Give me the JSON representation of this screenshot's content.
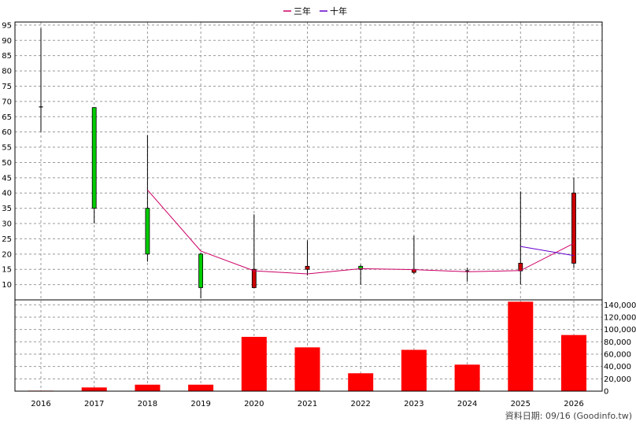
{
  "chart_data": {
    "type": "candlestick",
    "years": [
      "2016",
      "2017",
      "2018",
      "2019",
      "2020",
      "2021",
      "2022",
      "2023",
      "2024",
      "2025",
      "2026"
    ],
    "price": {
      "ylim": [
        5,
        96
      ],
      "ticks": [
        10,
        15,
        20,
        25,
        30,
        35,
        40,
        45,
        50,
        55,
        60,
        65,
        70,
        75,
        80,
        85,
        90,
        95
      ],
      "tick_labels": [
        "10",
        "15",
        "20",
        "25",
        "30",
        "35",
        "40",
        "45",
        "50",
        "55",
        "60",
        "65",
        "70",
        "75",
        "80",
        "85",
        "90",
        "95"
      ],
      "candles": [
        {
          "year": "2016",
          "open": 68.2,
          "close": 68.2,
          "high": 94,
          "low": 60,
          "color": "#000000"
        },
        {
          "year": "2017",
          "open": 35,
          "close": 68,
          "high": 68,
          "low": 30,
          "color": "#00cc00"
        },
        {
          "year": "2018",
          "open": 20,
          "close": 35,
          "high": 59,
          "low": 17.5,
          "color": "#00cc00"
        },
        {
          "year": "2019",
          "open": 9,
          "close": 20,
          "high": 20.5,
          "low": 5.5,
          "color": "#00cc00"
        },
        {
          "year": "2020",
          "open": 15,
          "close": 9,
          "high": 33,
          "low": 9,
          "color": "#cc0000"
        },
        {
          "year": "2021",
          "open": 16,
          "close": 15,
          "high": 24.5,
          "low": 13,
          "color": "#cc0000"
        },
        {
          "year": "2022",
          "open": 15,
          "close": 16,
          "high": 16.5,
          "low": 10,
          "color": "#00cc00"
        },
        {
          "year": "2023",
          "open": 15,
          "close": 14,
          "high": 26,
          "low": 13.5,
          "color": "#cc0000"
        },
        {
          "year": "2024",
          "open": 14.5,
          "close": 14.2,
          "high": 15.5,
          "low": 11,
          "color": "#000000"
        },
        {
          "year": "2025",
          "open": 17,
          "close": 14.5,
          "high": 40.5,
          "low": 10,
          "color": "#cc0000"
        },
        {
          "year": "2026",
          "open": 40,
          "close": 17,
          "high": 45,
          "low": 15.5,
          "color": "#cc0000"
        }
      ]
    },
    "series": [
      {
        "name": "三年",
        "color": "#cc0066",
        "points": [
          [
            "2018",
            41
          ],
          [
            "2019",
            21
          ],
          [
            "2020",
            14.5
          ],
          [
            "2021",
            13.5
          ],
          [
            "2022",
            15.2
          ],
          [
            "2023",
            14.9
          ],
          [
            "2024",
            14.2
          ],
          [
            "2025",
            14.6
          ],
          [
            "2026",
            23.5
          ]
        ]
      },
      {
        "name": "十年",
        "color": "#6600cc",
        "points": [
          [
            "2025",
            22.5
          ],
          [
            "2026",
            19.5
          ]
        ]
      }
    ],
    "volume": {
      "ylim": [
        0,
        148000
      ],
      "ticks": [
        0,
        20000,
        40000,
        60000,
        80000,
        100000,
        120000,
        140000
      ],
      "tick_labels": [
        "0",
        "20,000",
        "40,000",
        "60,000",
        "80,000",
        "100,000",
        "120,000",
        "140,000"
      ],
      "values": [
        800,
        6000,
        10500,
        10500,
        88000,
        71000,
        29000,
        67000,
        43000,
        145000,
        91000
      ],
      "color": "#ff0000"
    },
    "x_labels": [
      "2016",
      "2017",
      "2018",
      "2019",
      "2020",
      "2021",
      "2022",
      "2023",
      "2024",
      "2025",
      "2026"
    ]
  },
  "footer": "資料日期: 09/16 (Goodinfo.tw)"
}
